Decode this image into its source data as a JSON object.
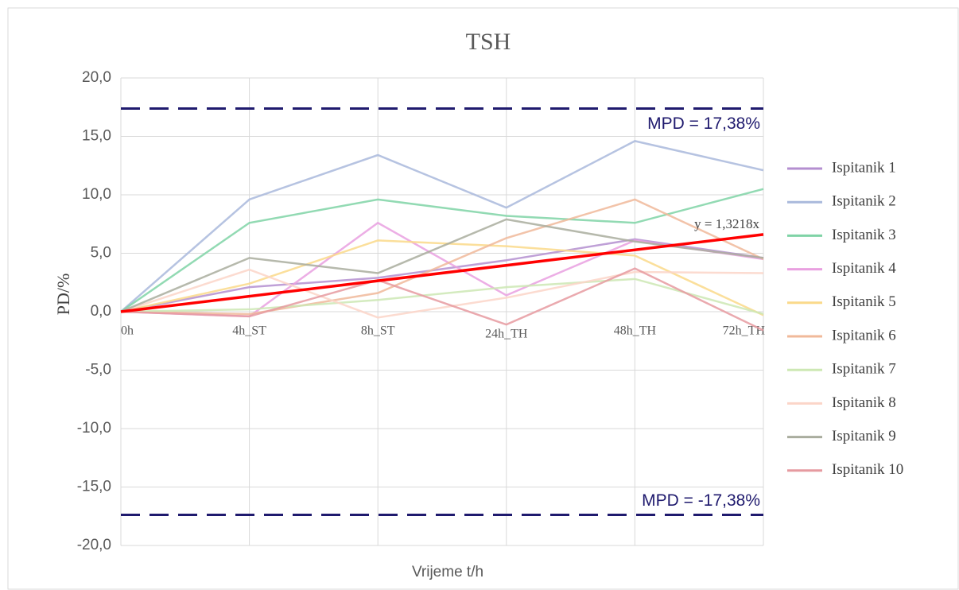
{
  "chart_data": {
    "type": "line",
    "title": "TSH",
    "x_label": "Vrijeme t/h",
    "y_label": "PD/%",
    "categories": [
      "0h",
      "4h_ST",
      "8h_ST",
      "24h_TH",
      "48h_TH",
      "72h_TH"
    ],
    "ylim": [
      -20,
      20
    ],
    "yticks": [
      {
        "value": -20,
        "label": "-20,0"
      },
      {
        "value": -15,
        "label": "-15,0"
      },
      {
        "value": -10,
        "label": "-10,0"
      },
      {
        "value": -5,
        "label": "-5,0"
      },
      {
        "value": 0,
        "label": "0,0"
      },
      {
        "value": 5,
        "label": "5,0"
      },
      {
        "value": 10,
        "label": "10,0"
      },
      {
        "value": 15,
        "label": "15,0"
      },
      {
        "value": 20,
        "label": "20,0"
      }
    ],
    "grid": true,
    "legend": "right",
    "series": [
      {
        "name": "Ispitanik 1",
        "color": "#b48fd0",
        "values": [
          0,
          2.1,
          2.9,
          4.4,
          6.2,
          4.6
        ]
      },
      {
        "name": "Ispitanik 2",
        "color": "#a9b9dc",
        "values": [
          0,
          9.6,
          13.4,
          8.9,
          14.6,
          12.1
        ]
      },
      {
        "name": "Ispitanik 3",
        "color": "#7fd3a6",
        "values": [
          0,
          7.6,
          9.6,
          8.2,
          7.6,
          10.5
        ]
      },
      {
        "name": "Ispitanik 4",
        "color": "#e9a0e0",
        "values": [
          0,
          -0.4,
          7.6,
          1.4,
          6.1,
          4.5
        ]
      },
      {
        "name": "Ispitanik 5",
        "color": "#fad98a",
        "values": [
          0,
          2.4,
          6.1,
          5.6,
          4.8,
          -0.3
        ]
      },
      {
        "name": "Ispitanik 6",
        "color": "#f0b99a",
        "values": [
          0,
          -0.2,
          1.6,
          6.3,
          9.6,
          4.5
        ]
      },
      {
        "name": "Ispitanik 7",
        "color": "#cde8b4",
        "values": [
          0,
          0.2,
          1.0,
          2.1,
          2.8,
          -0.2
        ]
      },
      {
        "name": "Ispitanik 8",
        "color": "#fbd5c8",
        "values": [
          0,
          3.6,
          -0.5,
          1.2,
          3.4,
          3.3
        ]
      },
      {
        "name": "Ispitanik 9",
        "color": "#a9ad9e",
        "values": [
          0,
          4.6,
          3.3,
          7.9,
          6.0,
          4.6
        ]
      },
      {
        "name": "Ispitanik 10",
        "color": "#e69aa0",
        "values": [
          0,
          -0.4,
          2.7,
          -1.1,
          3.7,
          -1.6
        ]
      }
    ],
    "trendline": {
      "label": "y = 1,3218x",
      "slope": 1.3218,
      "color": "#ff0000"
    },
    "reference_lines": [
      {
        "value": 17.38,
        "label": "MPD = 17,38%",
        "color": "#1f1a6e"
      },
      {
        "value": -17.38,
        "label": "MPD = -17,38%",
        "color": "#1f1a6e"
      }
    ]
  }
}
